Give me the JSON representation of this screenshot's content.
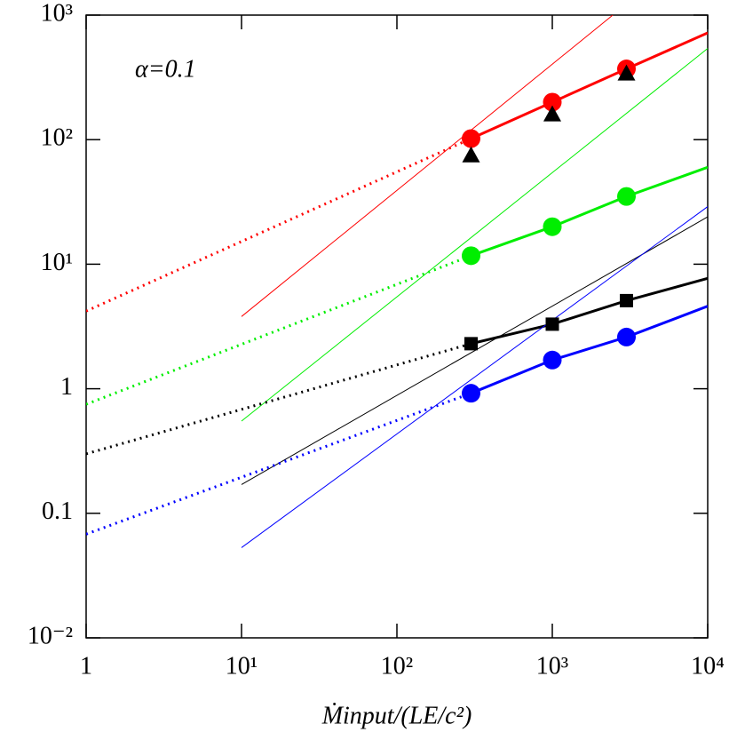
{
  "chart_data": {
    "type": "scatter",
    "annotation": "α=0.1",
    "x_label": "Ṁinput/(LE/c²)",
    "log_x": true,
    "log_y": true,
    "xlim": [
      1,
      10000
    ],
    "ylim": [
      0.01,
      1000
    ],
    "xticks": [
      {
        "value": 1,
        "label": "1"
      },
      {
        "value": 10,
        "label": "10¹"
      },
      {
        "value": 100,
        "label": "10²"
      },
      {
        "value": 1000,
        "label": "10³"
      },
      {
        "value": 10000,
        "label": "10⁴"
      }
    ],
    "yticks": [
      {
        "value": 0.01,
        "label": "10⁻²"
      },
      {
        "value": 0.1,
        "label": "0.1"
      },
      {
        "value": 1,
        "label": "1"
      },
      {
        "value": 10,
        "label": "10¹"
      },
      {
        "value": 100,
        "label": "10²"
      },
      {
        "value": 1000,
        "label": "10³"
      }
    ],
    "series": [
      {
        "color": "#ff0000",
        "marker": "circle",
        "x": [
          300,
          1000,
          3000
        ],
        "values": [
          102,
          200,
          370
        ]
      },
      {
        "color": "#000000",
        "marker": "triangle",
        "x": [
          300,
          1000,
          3000
        ],
        "values": [
          75,
          160,
          340
        ]
      },
      {
        "color": "#00ee00",
        "marker": "circle",
        "x": [
          300,
          1000,
          3000
        ],
        "values": [
          11.7,
          20,
          35
        ]
      },
      {
        "color": "#000000",
        "marker": "square",
        "x": [
          300,
          1000,
          3000
        ],
        "values": [
          2.3,
          3.3,
          5.1
        ]
      },
      {
        "color": "#0000ff",
        "marker": "circle",
        "x": [
          300,
          1000,
          3000
        ],
        "values": [
          0.92,
          1.7,
          2.6
        ]
      }
    ],
    "lines": [
      {
        "color": "#ff0000",
        "style": "solid",
        "x": [
          300,
          1000,
          3000,
          10000
        ],
        "values": [
          102,
          200,
          370,
          720
        ]
      },
      {
        "color": "#ff0000",
        "style": "dotted",
        "x": [
          1,
          300
        ],
        "values": [
          4.2,
          102
        ]
      },
      {
        "color": "#ff0000",
        "style": "thin",
        "x": [
          10,
          2450
        ],
        "values": [
          3.8,
          1000
        ]
      },
      {
        "color": "#00ee00",
        "style": "solid",
        "x": [
          300,
          1000,
          3000,
          10000
        ],
        "values": [
          11.7,
          20,
          35,
          60
        ]
      },
      {
        "color": "#00ee00",
        "style": "dotted",
        "x": [
          1,
          300
        ],
        "values": [
          0.75,
          11.7
        ]
      },
      {
        "color": "#00ee00",
        "style": "thin",
        "x": [
          10,
          10000
        ],
        "values": [
          0.55,
          540
        ]
      },
      {
        "color": "#000000",
        "style": "solid",
        "x": [
          300,
          1000,
          3000,
          10000
        ],
        "values": [
          2.3,
          3.3,
          5.1,
          7.7
        ]
      },
      {
        "color": "#000000",
        "style": "dotted",
        "x": [
          1,
          300
        ],
        "values": [
          0.3,
          2.3
        ]
      },
      {
        "color": "#000000",
        "style": "thin",
        "x": [
          10,
          10000
        ],
        "values": [
          0.17,
          24
        ]
      },
      {
        "color": "#0000ff",
        "style": "solid",
        "x": [
          300,
          1000,
          3000,
          10000
        ],
        "values": [
          0.92,
          1.7,
          2.6,
          4.6
        ]
      },
      {
        "color": "#0000ff",
        "style": "dotted",
        "x": [
          1,
          300
        ],
        "values": [
          0.068,
          0.92
        ]
      },
      {
        "color": "#0000ff",
        "style": "thin",
        "x": [
          10,
          10000
        ],
        "values": [
          0.053,
          29
        ]
      }
    ]
  }
}
